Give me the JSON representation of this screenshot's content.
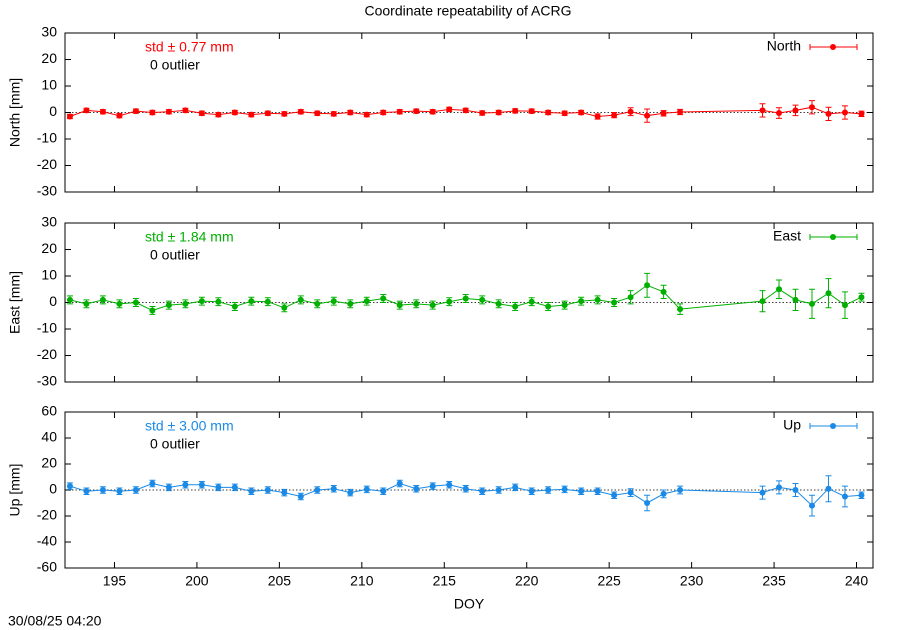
{
  "title": "Coordinate repeatability of ACRG",
  "footer": "30/08/25 04:20",
  "chart_data": [
    {
      "type": "line",
      "ylabel": "North [mm]",
      "annotations": [
        "std ± 0.77 mm",
        "0 outlier"
      ],
      "xlim": [
        192,
        241
      ],
      "xticks": [
        195,
        200,
        205,
        210,
        215,
        220,
        225,
        230,
        235,
        240
      ],
      "ylim": [
        -30,
        30
      ],
      "yticks": [
        -30,
        -20,
        -10,
        0,
        10,
        20,
        30
      ],
      "legend": "upper right",
      "x": [
        192.3,
        193.3,
        194.3,
        195.3,
        196.3,
        197.3,
        198.3,
        199.3,
        200.3,
        201.3,
        202.3,
        203.3,
        204.3,
        205.3,
        206.3,
        207.3,
        208.3,
        209.3,
        210.3,
        211.3,
        212.3,
        213.3,
        214.3,
        215.3,
        216.3,
        217.3,
        218.3,
        219.3,
        220.3,
        221.3,
        222.3,
        223.3,
        224.3,
        225.3,
        226.3,
        227.3,
        228.3,
        229.3,
        234.3,
        235.3,
        236.3,
        237.3,
        238.3,
        239.3,
        240.3
      ],
      "series": [
        {
          "name": "North",
          "color": "#ff0000",
          "values": [
            -1.5,
            0.8,
            0.3,
            -1.2,
            0.5,
            0,
            0.3,
            0.8,
            -0.3,
            -0.8,
            0,
            -0.8,
            -0.3,
            -0.5,
            0.3,
            -0.3,
            -0.5,
            0,
            -0.8,
            0,
            0.3,
            0.5,
            0.3,
            1.2,
            0.8,
            -0.2,
            0,
            0.6,
            0.5,
            0,
            -0.3,
            0,
            -1.5,
            -1,
            0.3,
            -1.2,
            -0.3,
            0.2,
            0.8,
            -0.2,
            0.8,
            2,
            -0.5,
            0,
            -0.5
          ],
          "errors": [
            0.8,
            0.8,
            0.8,
            0.8,
            0.8,
            0.8,
            0.8,
            0.8,
            0.8,
            0.8,
            0.8,
            0.8,
            0.8,
            0.8,
            0.8,
            0.8,
            0.8,
            0.8,
            0.8,
            0.8,
            0.8,
            0.8,
            0.8,
            0.8,
            0.8,
            0.8,
            0.8,
            0.8,
            0.8,
            0.8,
            0.8,
            0.8,
            1,
            1,
            1.5,
            2.5,
            1,
            1,
            2.5,
            2,
            2,
            2.5,
            2.5,
            2.5,
            1
          ]
        }
      ]
    },
    {
      "type": "line",
      "ylabel": "East [mm]",
      "annotations": [
        "std ± 1.84 mm",
        "0 outlier"
      ],
      "xlim": [
        192,
        241
      ],
      "xticks": [
        195,
        200,
        205,
        210,
        215,
        220,
        225,
        230,
        235,
        240
      ],
      "ylim": [
        -30,
        30
      ],
      "yticks": [
        -30,
        -20,
        -10,
        0,
        10,
        20,
        30
      ],
      "legend": "upper right",
      "x": [
        192.3,
        193.3,
        194.3,
        195.3,
        196.3,
        197.3,
        198.3,
        199.3,
        200.3,
        201.3,
        202.3,
        203.3,
        204.3,
        205.3,
        206.3,
        207.3,
        208.3,
        209.3,
        210.3,
        211.3,
        212.3,
        213.3,
        214.3,
        215.3,
        216.3,
        217.3,
        218.3,
        219.3,
        220.3,
        221.3,
        222.3,
        223.3,
        224.3,
        225.3,
        226.3,
        227.3,
        228.3,
        229.3,
        234.3,
        235.3,
        236.3,
        237.3,
        238.3,
        239.3,
        240.3
      ],
      "series": [
        {
          "name": "East",
          "color": "#00b000",
          "values": [
            1,
            -0.5,
            1,
            -0.5,
            0,
            -3,
            -1,
            -0.5,
            0.5,
            0.3,
            -1.5,
            0.5,
            0.3,
            -2,
            1,
            -0.5,
            0.5,
            -0.5,
            0.5,
            1.5,
            -1,
            -0.5,
            -1,
            0.3,
            1.5,
            1,
            -0.5,
            -1.5,
            0.3,
            -1.5,
            -1,
            0.5,
            1,
            0,
            2,
            6.5,
            4,
            -2.5,
            0.5,
            5,
            1,
            -0.5,
            3.5,
            -1,
            2
          ],
          "errors": [
            1.5,
            1.5,
            1.5,
            1.5,
            1.5,
            1.5,
            1.5,
            1.5,
            1.5,
            1.5,
            1.5,
            1.5,
            1.5,
            1.5,
            1.5,
            1.5,
            1.5,
            1.5,
            1.5,
            1.5,
            1.5,
            1.5,
            1.5,
            1.5,
            1.5,
            1.5,
            1.5,
            1.5,
            1.5,
            1.5,
            1.5,
            1.5,
            1.5,
            1.5,
            2.5,
            4.5,
            2.5,
            2,
            4,
            3.5,
            4,
            5.5,
            5.5,
            5,
            1.5
          ]
        }
      ]
    },
    {
      "type": "line",
      "ylabel": "Up [mm]",
      "xlabel": "DOY",
      "annotations": [
        "std ± 3.00 mm",
        "0 outlier"
      ],
      "xlim": [
        192,
        241
      ],
      "xticks": [
        195,
        200,
        205,
        210,
        215,
        220,
        225,
        230,
        235,
        240
      ],
      "ylim": [
        -60,
        60
      ],
      "yticks": [
        -60,
        -40,
        -20,
        0,
        20,
        40,
        60
      ],
      "legend": "upper right",
      "x": [
        192.3,
        193.3,
        194.3,
        195.3,
        196.3,
        197.3,
        198.3,
        199.3,
        200.3,
        201.3,
        202.3,
        203.3,
        204.3,
        205.3,
        206.3,
        207.3,
        208.3,
        209.3,
        210.3,
        211.3,
        212.3,
        213.3,
        214.3,
        215.3,
        216.3,
        217.3,
        218.3,
        219.3,
        220.3,
        221.3,
        222.3,
        223.3,
        224.3,
        225.3,
        226.3,
        227.3,
        228.3,
        229.3,
        234.3,
        235.3,
        236.3,
        237.3,
        238.3,
        239.3,
        240.3
      ],
      "series": [
        {
          "name": "Up",
          "color": "#1a8ae6",
          "values": [
            3,
            -1,
            0,
            -1,
            0,
            5,
            2,
            4,
            4,
            2,
            2,
            -1,
            0,
            -2,
            -5,
            0,
            1,
            -2,
            0.5,
            -1,
            5,
            1,
            3,
            4,
            1,
            -1,
            0,
            2,
            -1,
            0,
            0.5,
            -1,
            -1,
            -4,
            -2,
            -10,
            -3,
            0,
            -2,
            2,
            0,
            -12,
            1,
            -5,
            -4
          ],
          "errors": [
            2.5,
            2.5,
            2.5,
            2.5,
            2.5,
            2.5,
            2.5,
            2.5,
            2.5,
            2.5,
            2.5,
            2.5,
            2.5,
            2.5,
            2.5,
            2.5,
            2.5,
            2.5,
            2.5,
            2.5,
            2.5,
            2.5,
            2.5,
            2.5,
            2.5,
            2.5,
            2.5,
            2.5,
            2.5,
            2.5,
            2.5,
            2.5,
            2.5,
            2.5,
            3,
            6,
            3,
            3,
            5,
            5,
            5,
            8,
            10,
            8,
            2.5
          ]
        }
      ]
    }
  ]
}
